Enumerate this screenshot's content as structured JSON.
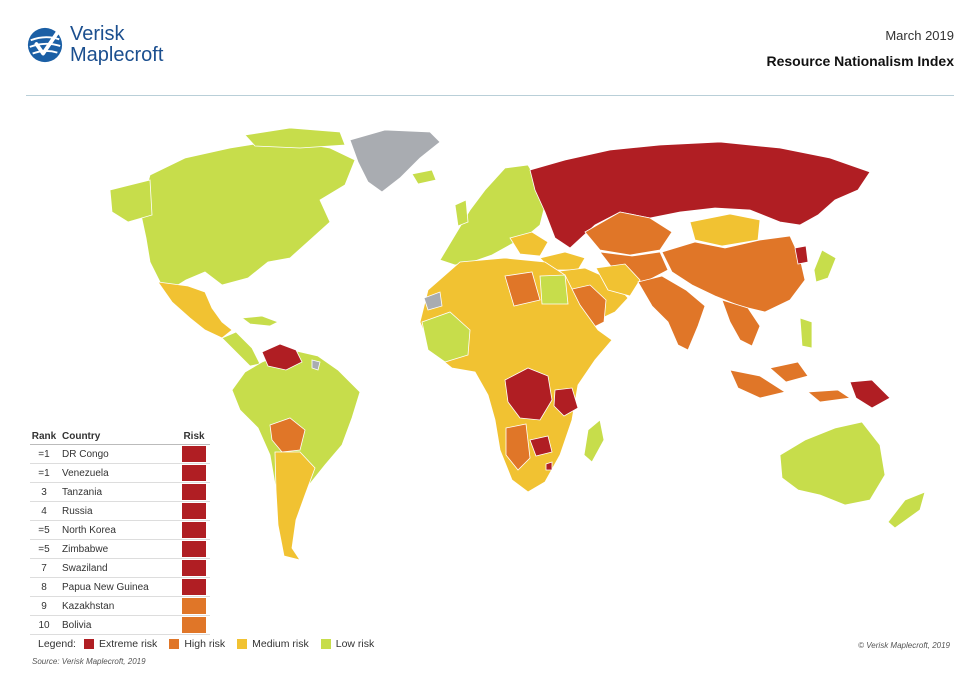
{
  "brand": {
    "name_line1": "Verisk",
    "name_line2": "Maplecroft",
    "icon": "verisk-checkmark-globe-icon"
  },
  "header": {
    "date": "March 2019",
    "title": "Resource Nationalism Index"
  },
  "colors": {
    "extreme": "#b01e23",
    "high": "#e07628",
    "medium": "#f1c232",
    "low": "#c7dd4b",
    "nodata": "#a9acb1",
    "ocean": "#ffffff"
  },
  "ranking": {
    "headers": {
      "rank": "Rank",
      "country": "Country",
      "risk": "Risk"
    },
    "rows": [
      {
        "rank": "=1",
        "country": "DR Congo",
        "risk": "extreme"
      },
      {
        "rank": "=1",
        "country": "Venezuela",
        "risk": "extreme"
      },
      {
        "rank": "3",
        "country": "Tanzania",
        "risk": "extreme"
      },
      {
        "rank": "4",
        "country": "Russia",
        "risk": "extreme"
      },
      {
        "rank": "=5",
        "country": "North Korea",
        "risk": "extreme"
      },
      {
        "rank": "=5",
        "country": "Zimbabwe",
        "risk": "extreme"
      },
      {
        "rank": "7",
        "country": "Swaziland",
        "risk": "extreme"
      },
      {
        "rank": "8",
        "country": "Papua New Guinea",
        "risk": "extreme"
      },
      {
        "rank": "9",
        "country": "Kazakhstan",
        "risk": "high"
      },
      {
        "rank": "10",
        "country": "Bolivia",
        "risk": "high"
      }
    ]
  },
  "legend": {
    "label": "Legend:",
    "items": [
      {
        "key": "extreme",
        "label": "Extreme risk"
      },
      {
        "key": "high",
        "label": "High risk"
      },
      {
        "key": "medium",
        "label": "Medium risk"
      },
      {
        "key": "low",
        "label": "Low risk"
      }
    ]
  },
  "copyright": "© Verisk Maplecroft, 2019",
  "source": "Source: Verisk Maplecroft, 2019"
}
